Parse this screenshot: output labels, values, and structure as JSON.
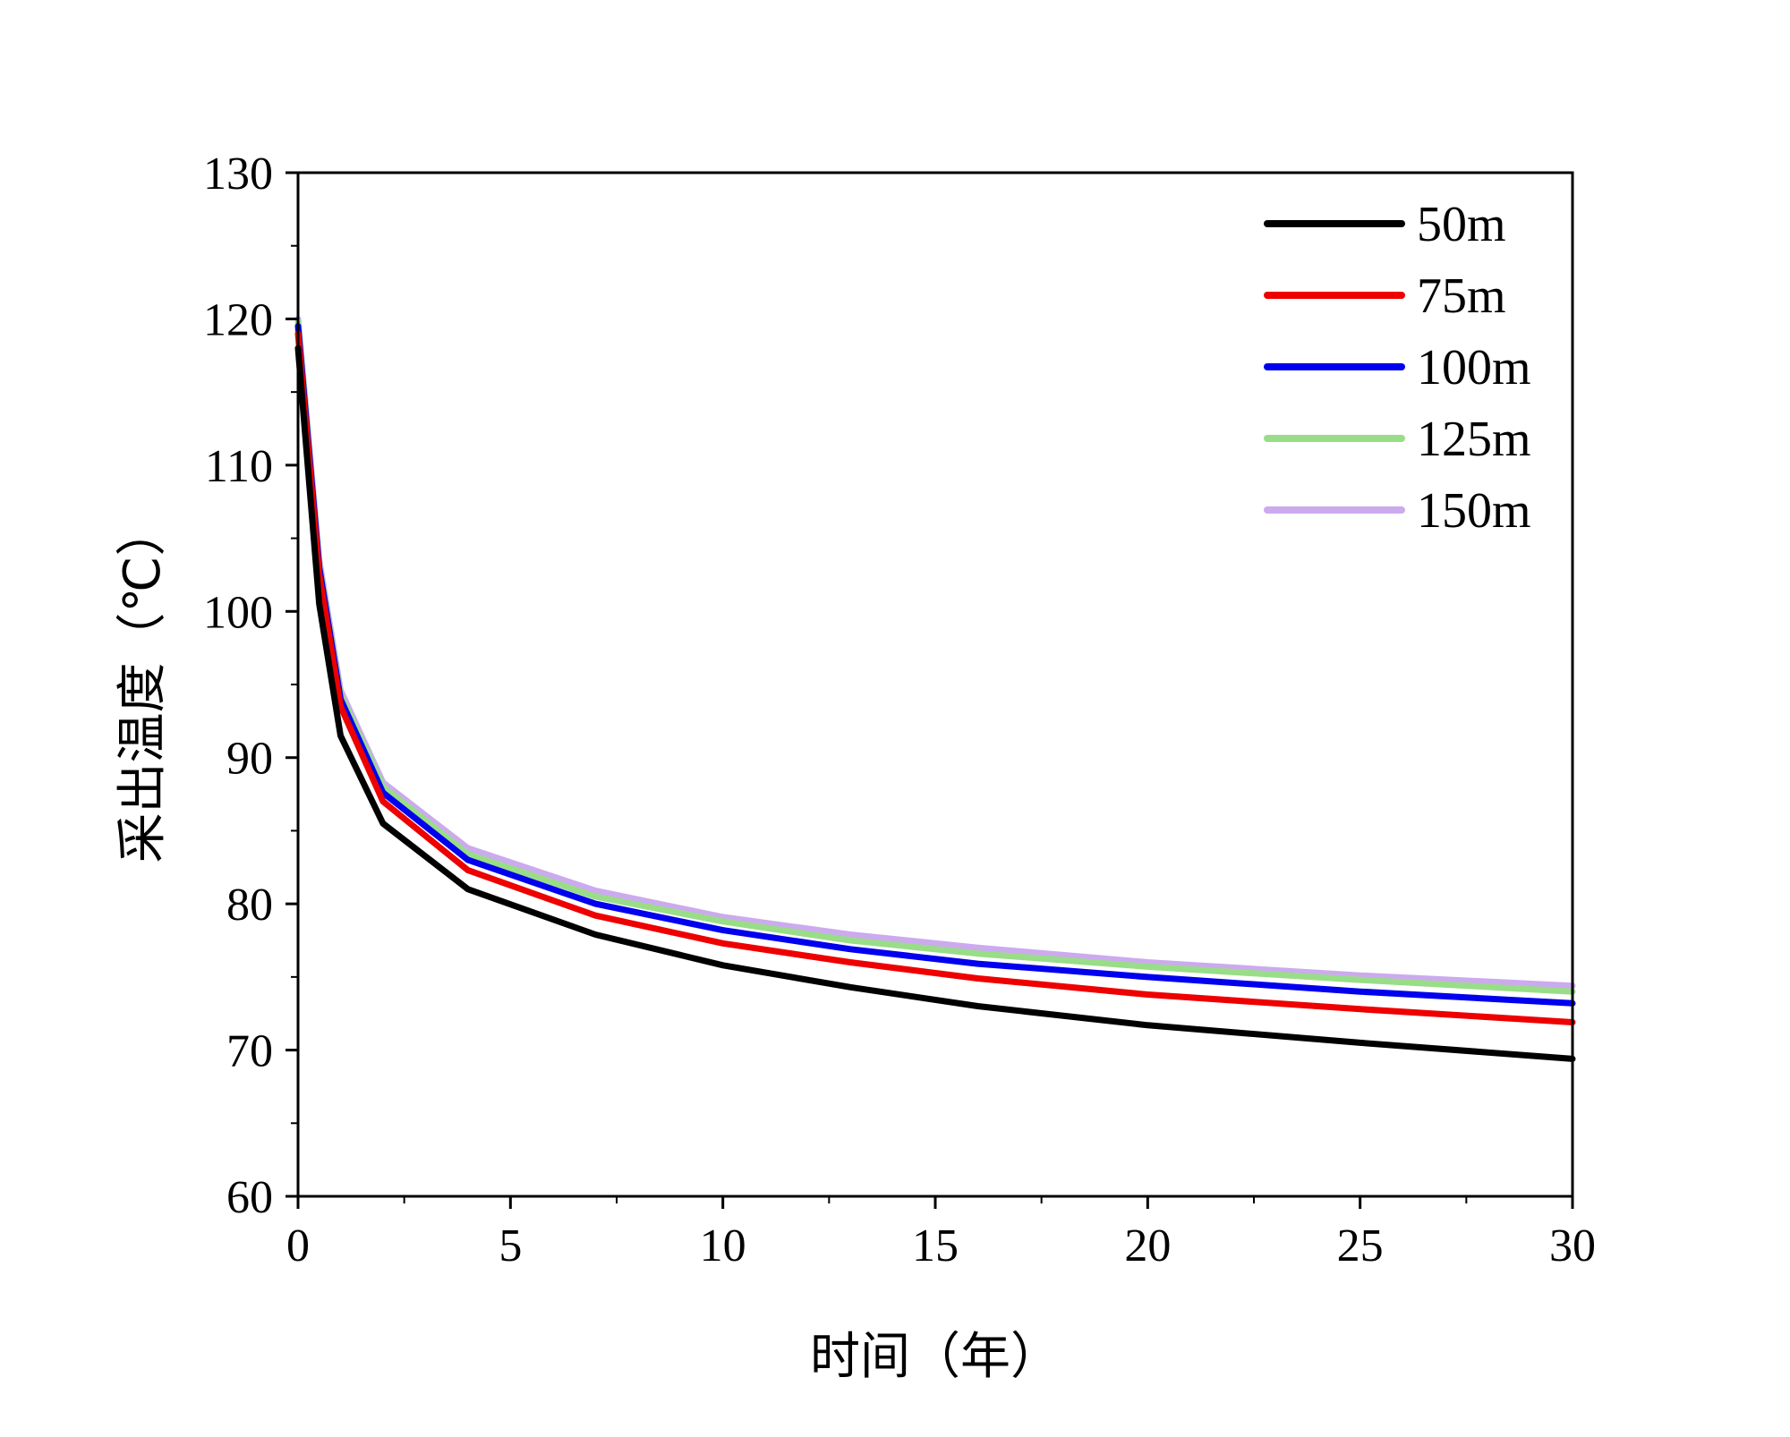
{
  "chart_data": {
    "type": "line",
    "title": "",
    "xlabel": "时间（年）",
    "ylabel": "采出温度（℃）",
    "xlim": [
      0,
      30
    ],
    "ylim": [
      60,
      130
    ],
    "xticks": [
      "0",
      "5",
      "10",
      "15",
      "20",
      "25",
      "30"
    ],
    "yticks": [
      "60",
      "70",
      "80",
      "90",
      "100",
      "110",
      "120",
      "130"
    ],
    "grid": false,
    "legend_position": "top-right",
    "x": [
      0,
      0.5,
      1,
      2,
      4,
      7,
      10,
      13,
      16,
      20,
      25,
      30
    ],
    "series": [
      {
        "name": "50m",
        "color": "#000000",
        "values": [
          118.0,
          100.5,
          91.5,
          85.5,
          81.0,
          77.9,
          75.8,
          74.3,
          73.0,
          71.7,
          70.5,
          69.4
        ]
      },
      {
        "name": "75m",
        "color": "#ee0000",
        "values": [
          119.0,
          102.5,
          93.5,
          87.0,
          82.3,
          79.2,
          77.3,
          76.0,
          74.9,
          73.8,
          72.8,
          71.9
        ]
      },
      {
        "name": "100m",
        "color": "#0000ee",
        "values": [
          119.5,
          103.0,
          94.0,
          87.6,
          83.0,
          80.0,
          78.2,
          76.9,
          75.9,
          75.0,
          74.0,
          73.2
        ]
      },
      {
        "name": "125m",
        "color": "#99dd88",
        "values": [
          119.8,
          103.2,
          94.3,
          88.0,
          83.4,
          80.5,
          78.8,
          77.5,
          76.6,
          75.7,
          74.8,
          74.0
        ]
      },
      {
        "name": "150m",
        "color": "#ccaaee",
        "values": [
          120.0,
          103.5,
          94.6,
          88.3,
          83.8,
          80.9,
          79.1,
          77.9,
          77.0,
          76.0,
          75.1,
          74.4
        ]
      }
    ]
  }
}
